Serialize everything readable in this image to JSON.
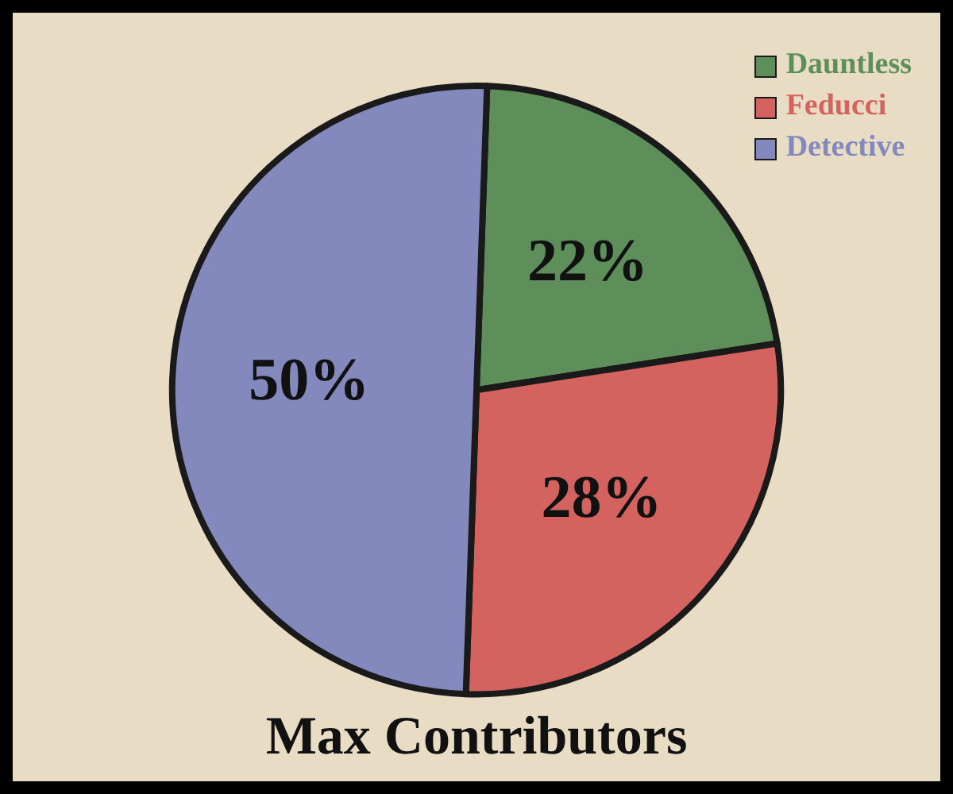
{
  "chart_data": {
    "type": "pie",
    "title": "Max Contributors",
    "categories": [
      "Dauntless",
      "Feducci",
      "Detective"
    ],
    "values": [
      22,
      28,
      50
    ],
    "colors": [
      "#5e8f5a",
      "#d4625e",
      "#8389bd"
    ],
    "value_labels": [
      "22%",
      "28%",
      "50%"
    ],
    "legend": "top right"
  }
}
